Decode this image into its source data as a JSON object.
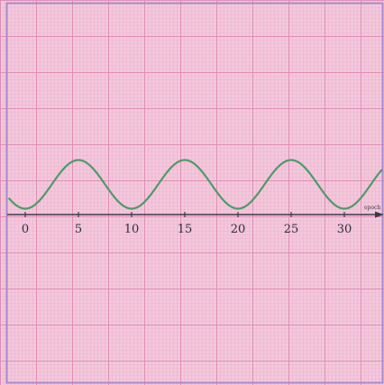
{
  "chart_data": {
    "type": "line",
    "title": "",
    "xlabel": "epoch",
    "ylabel": "",
    "xlim": [
      -1.5,
      33.5
    ],
    "ylim": [
      -2.5,
      1.8
    ],
    "grid": true,
    "x_ticks": [
      0,
      5,
      10,
      15,
      20,
      25,
      30
    ],
    "x_tick_labels": [
      "0",
      "5",
      "10",
      "15",
      "20",
      "25",
      "30"
    ],
    "series": [
      {
        "name": "",
        "color": "#4f9a6a",
        "period": 10,
        "phase_peak_x": 5,
        "x": [
          -1.5,
          0,
          2.5,
          5,
          7.5,
          10,
          12.5,
          15,
          17.5,
          20,
          22.5,
          25,
          27.5,
          30,
          32.5,
          33.5
        ],
        "y": [
          0.12,
          0.2,
          0.64,
          1.1,
          0.64,
          0.2,
          0.64,
          1.1,
          0.64,
          0.2,
          0.64,
          1.1,
          0.64,
          0.2,
          0.64,
          0.82
        ]
      }
    ]
  },
  "colors": {
    "background": "#f3c8dc",
    "minor_grid": "#eeb3cd",
    "major_grid": "#e08fb4",
    "border": "#a98bc9",
    "axis": "#3a3a4a",
    "curve": "#4f9a6a"
  }
}
